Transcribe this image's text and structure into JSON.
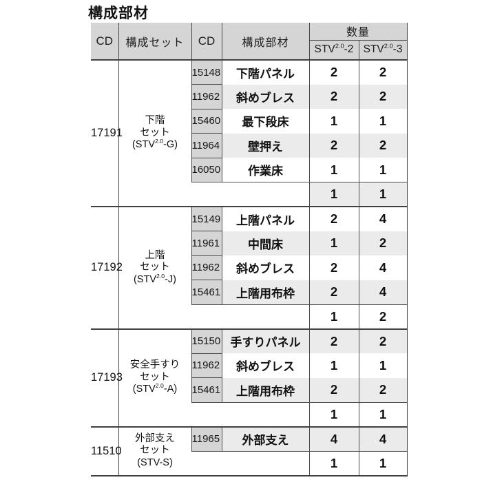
{
  "title": "構成部材",
  "colors": {
    "header_bg": "#d5d5d5",
    "stripe_bg": "#ebebeb",
    "border": "#4a4a4a",
    "text": "#1a1a1a"
  },
  "header": {
    "cd": "CD",
    "set": "構成セット",
    "cd2": "CD",
    "part": "構成部材",
    "qty": "数量",
    "qty_columns": [
      {
        "base": "STV",
        "sup": "2.0",
        "tail": "-2"
      },
      {
        "base": "STV",
        "sup": "2.0",
        "tail": "-3"
      }
    ]
  },
  "sections": [
    {
      "cd": "17191",
      "set_lines": [
        "下階",
        "セット"
      ],
      "set_model": {
        "pre": "(STV",
        "sup": "2.0",
        "post": "-G)"
      },
      "parts": [
        {
          "cd": "15148",
          "name": "下階パネル",
          "qty": [
            "2",
            "2"
          ]
        },
        {
          "cd": "11962",
          "name": "斜めブレス",
          "qty": [
            "2",
            "2"
          ]
        },
        {
          "cd": "15460",
          "name": "最下段床",
          "qty": [
            "1",
            "1"
          ]
        },
        {
          "cd": "11964",
          "name": "壁押え",
          "qty": [
            "2",
            "2"
          ]
        },
        {
          "cd": "16050",
          "name": "作業床",
          "qty": [
            "1",
            "1"
          ]
        }
      ],
      "set_qty": [
        "1",
        "1"
      ]
    },
    {
      "cd": "17192",
      "set_lines": [
        "上階",
        "セット"
      ],
      "set_model": {
        "pre": "(STV",
        "sup": "2.0",
        "post": "-J)"
      },
      "parts": [
        {
          "cd": "15149",
          "name": "上階パネル",
          "qty": [
            "2",
            "4"
          ]
        },
        {
          "cd": "11961",
          "name": "中間床",
          "qty": [
            "1",
            "2"
          ]
        },
        {
          "cd": "11962",
          "name": "斜めブレス",
          "qty": [
            "2",
            "4"
          ]
        },
        {
          "cd": "15461",
          "name": "上階用布枠",
          "qty": [
            "2",
            "4"
          ]
        }
      ],
      "set_qty": [
        "1",
        "2"
      ]
    },
    {
      "cd": "17193",
      "set_lines": [
        "安全手すり",
        "セット"
      ],
      "set_model": {
        "pre": "(STV",
        "sup": "2.0",
        "post": "-A)"
      },
      "parts": [
        {
          "cd": "15150",
          "name": "手すりパネル",
          "qty": [
            "2",
            "2"
          ]
        },
        {
          "cd": "11962",
          "name": "斜めブレス",
          "qty": [
            "1",
            "1"
          ]
        },
        {
          "cd": "15461",
          "name": "上階用布枠",
          "qty": [
            "2",
            "2"
          ]
        }
      ],
      "set_qty": [
        "1",
        "1"
      ]
    },
    {
      "cd": "11510",
      "set_lines": [
        "外部支え",
        "セット"
      ],
      "set_model": {
        "pre": "(STV-S)",
        "sup": "",
        "post": ""
      },
      "parts": [
        {
          "cd": "11965",
          "name": "外部支え",
          "qty": [
            "4",
            "4"
          ]
        }
      ],
      "set_qty": [
        "1",
        "1"
      ]
    }
  ]
}
